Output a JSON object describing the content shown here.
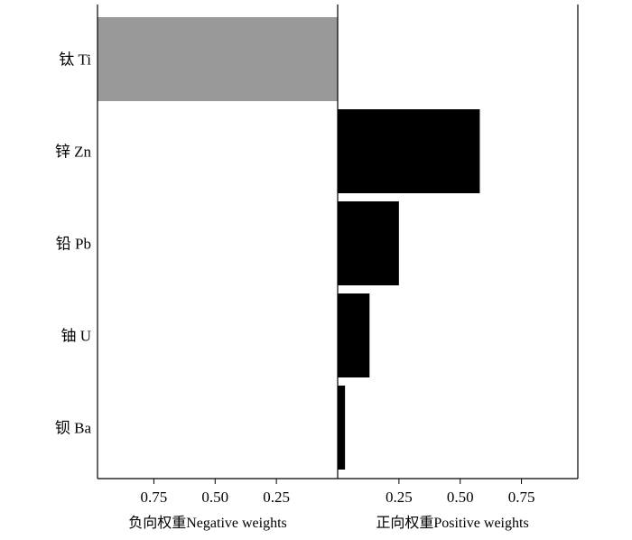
{
  "chart_data": {
    "type": "bar",
    "orientation": "horizontal",
    "layout": "diverging",
    "categories": [
      "钛 Ti",
      "锌 Zn",
      "铅 Pb",
      "铀 U",
      "钡 Ba"
    ],
    "values": [
      -0.98,
      0.58,
      0.25,
      0.13,
      0.03
    ],
    "bar_colors": {
      "negative": "#999999",
      "positive": "#000000"
    },
    "xlim": [
      -0.98,
      0.98
    ],
    "negative_ticks": {
      "values": [
        0.75,
        0.5,
        0.25
      ],
      "labels": [
        "0.75",
        "0.50",
        "0.25"
      ]
    },
    "positive_ticks": {
      "values": [
        0.25,
        0.5,
        0.75
      ],
      "labels": [
        "0.25",
        "0.50",
        "0.75"
      ]
    },
    "xlabel_negative": "负向权重Negative weights",
    "xlabel_positive": "正向权重Positive weights",
    "ylabel": "",
    "title": "",
    "grid": false,
    "legend": "none"
  }
}
